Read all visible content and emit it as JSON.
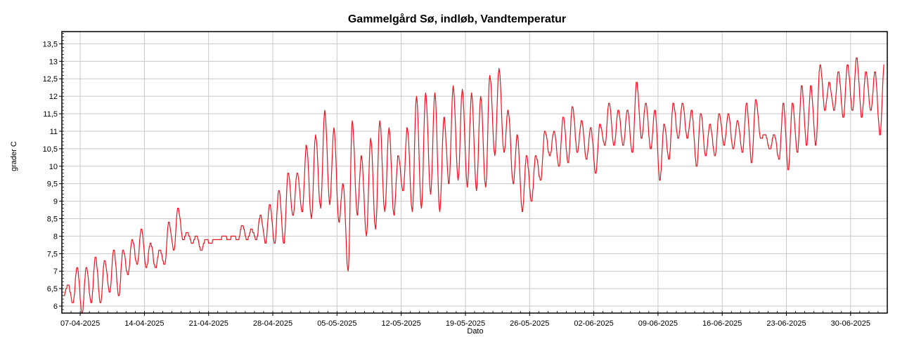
{
  "chart_data": {
    "type": "line",
    "title": "Gammelgård Sø, indløb, Vandtemperatur",
    "xlabel": "Dato",
    "ylabel": "grader C",
    "ylim": [
      5.8,
      13.85
    ],
    "xlim": [
      "2025-04-05",
      "2025-07-04"
    ],
    "x_ticks": [
      "07-04-2025",
      "14-04-2025",
      "21-04-2025",
      "28-04-2025",
      "05-05-2025",
      "12-05-2025",
      "19-05-2025",
      "26-05-2025",
      "02-06-2025",
      "09-06-2025",
      "16-06-2025",
      "23-06-2025",
      "30-06-2025"
    ],
    "y_ticks": [
      "6",
      "6,5",
      "7",
      "7,5",
      "8",
      "8,5",
      "9",
      "9,5",
      "10",
      "10,5",
      "11",
      "11,5",
      "12",
      "12,5",
      "13",
      "13,5"
    ],
    "grid": true,
    "series": [
      {
        "color": "#e8141e",
        "daily_min_max": [
          [
            "2025-04-05",
            6.3,
            6.6
          ],
          [
            "2025-04-06",
            6.1,
            7.1
          ],
          [
            "2025-04-07",
            5.8,
            7.1
          ],
          [
            "2025-04-08",
            6.1,
            7.4
          ],
          [
            "2025-04-09",
            6.1,
            7.3
          ],
          [
            "2025-04-10",
            6.4,
            7.6
          ],
          [
            "2025-04-11",
            6.3,
            7.6
          ],
          [
            "2025-04-12",
            6.9,
            7.9
          ],
          [
            "2025-04-13",
            7.2,
            8.2
          ],
          [
            "2025-04-14",
            7.1,
            7.8
          ],
          [
            "2025-04-15",
            7.1,
            7.6
          ],
          [
            "2025-04-16",
            7.2,
            8.4
          ],
          [
            "2025-04-17",
            7.6,
            8.8
          ],
          [
            "2025-04-18",
            7.9,
            8.1
          ],
          [
            "2025-04-19",
            7.8,
            8.0
          ],
          [
            "2025-04-20",
            7.6,
            7.9
          ],
          [
            "2025-04-21",
            7.8,
            7.9
          ],
          [
            "2025-04-22",
            7.9,
            8.0
          ],
          [
            "2025-04-23",
            7.9,
            8.0
          ],
          [
            "2025-04-24",
            7.9,
            8.3
          ],
          [
            "2025-04-25",
            7.9,
            8.2
          ],
          [
            "2025-04-26",
            7.9,
            8.6
          ],
          [
            "2025-04-27",
            7.8,
            8.9
          ],
          [
            "2025-04-28",
            7.8,
            9.3
          ],
          [
            "2025-04-29",
            7.8,
            9.8
          ],
          [
            "2025-04-30",
            8.6,
            9.8
          ],
          [
            "2025-05-01",
            8.7,
            10.6
          ],
          [
            "2025-05-02",
            8.5,
            10.9
          ],
          [
            "2025-05-03",
            8.8,
            11.6
          ],
          [
            "2025-05-04",
            8.9,
            11.1
          ],
          [
            "2025-05-05",
            8.4,
            9.5
          ],
          [
            "2025-05-06",
            7.0,
            11.3
          ],
          [
            "2025-05-07",
            8.6,
            10.3
          ],
          [
            "2025-05-08",
            8.0,
            10.8
          ],
          [
            "2025-05-09",
            8.2,
            11.3
          ],
          [
            "2025-05-10",
            8.7,
            11.1
          ],
          [
            "2025-05-11",
            8.6,
            10.3
          ],
          [
            "2025-05-12",
            9.3,
            11.1
          ],
          [
            "2025-05-13",
            8.7,
            12.0
          ],
          [
            "2025-05-14",
            8.8,
            12.1
          ],
          [
            "2025-05-15",
            9.2,
            12.1
          ],
          [
            "2025-05-16",
            8.7,
            11.4
          ],
          [
            "2025-05-17",
            9.5,
            12.3
          ],
          [
            "2025-05-18",
            9.6,
            12.2
          ],
          [
            "2025-05-19",
            9.4,
            12.1
          ],
          [
            "2025-05-20",
            9.3,
            12.0
          ],
          [
            "2025-05-21",
            9.4,
            12.6
          ],
          [
            "2025-05-22",
            10.3,
            12.8
          ],
          [
            "2025-05-23",
            10.4,
            11.6
          ],
          [
            "2025-05-24",
            9.5,
            10.9
          ],
          [
            "2025-05-25",
            8.7,
            10.3
          ],
          [
            "2025-05-26",
            9.0,
            10.3
          ],
          [
            "2025-05-27",
            9.6,
            11.0
          ],
          [
            "2025-05-28",
            10.3,
            11.0
          ],
          [
            "2025-05-29",
            10.0,
            11.4
          ],
          [
            "2025-05-30",
            10.1,
            11.7
          ],
          [
            "2025-05-31",
            10.4,
            11.3
          ],
          [
            "2025-06-01",
            10.2,
            11.1
          ],
          [
            "2025-06-02",
            9.8,
            11.2
          ],
          [
            "2025-06-03",
            10.6,
            11.8
          ],
          [
            "2025-06-04",
            10.6,
            11.6
          ],
          [
            "2025-06-05",
            10.6,
            11.6
          ],
          [
            "2025-06-06",
            10.4,
            12.4
          ],
          [
            "2025-06-07",
            10.8,
            11.8
          ],
          [
            "2025-06-08",
            10.5,
            11.6
          ],
          [
            "2025-06-09",
            9.6,
            11.2
          ],
          [
            "2025-06-10",
            10.2,
            11.8
          ],
          [
            "2025-06-11",
            10.8,
            11.8
          ],
          [
            "2025-06-12",
            10.8,
            11.6
          ],
          [
            "2025-06-13",
            10.0,
            11.5
          ],
          [
            "2025-06-14",
            10.3,
            11.2
          ],
          [
            "2025-06-15",
            10.3,
            11.5
          ],
          [
            "2025-06-16",
            10.6,
            11.5
          ],
          [
            "2025-06-17",
            10.5,
            11.3
          ],
          [
            "2025-06-18",
            10.4,
            11.8
          ],
          [
            "2025-06-19",
            10.1,
            11.9
          ],
          [
            "2025-06-20",
            10.8,
            10.9
          ],
          [
            "2025-06-21",
            10.5,
            10.9
          ],
          [
            "2025-06-22",
            10.2,
            11.8
          ],
          [
            "2025-06-23",
            9.9,
            11.8
          ],
          [
            "2025-06-24",
            10.4,
            12.3
          ],
          [
            "2025-06-25",
            10.6,
            12.3
          ],
          [
            "2025-06-26",
            10.6,
            12.9
          ],
          [
            "2025-06-27",
            11.6,
            12.4
          ],
          [
            "2025-06-28",
            11.6,
            12.7
          ],
          [
            "2025-06-29",
            11.4,
            12.9
          ],
          [
            "2025-06-30",
            11.6,
            13.1
          ],
          [
            "2025-07-01",
            11.4,
            12.7
          ],
          [
            "2025-07-02",
            11.6,
            12.7
          ],
          [
            "2025-07-03",
            10.9,
            12.9
          ]
        ]
      }
    ]
  }
}
